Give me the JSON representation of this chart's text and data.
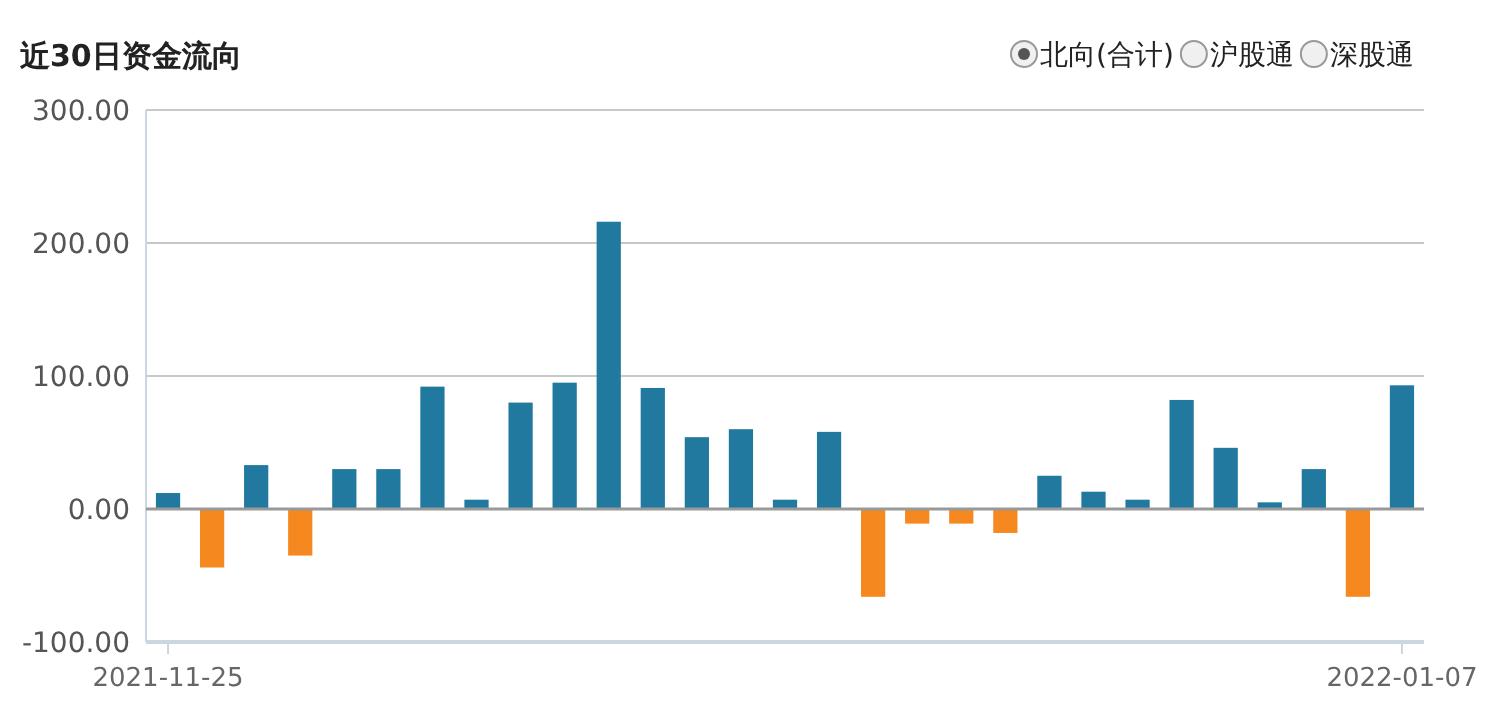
{
  "chart_data": {
    "type": "bar",
    "title": "近30日资金流向",
    "annotations": [
      "北向(合计)",
      "沪股通",
      "深股通"
    ],
    "categories": [
      "2021-11-25",
      null,
      null,
      null,
      null,
      null,
      null,
      null,
      null,
      null,
      null,
      null,
      null,
      null,
      null,
      null,
      null,
      null,
      null,
      null,
      null,
      null,
      null,
      null,
      null,
      null,
      null,
      null,
      "2022-01-07"
    ],
    "values": [
      12,
      -44,
      33,
      -35,
      30,
      30,
      92,
      7,
      80,
      95,
      216,
      91,
      54,
      60,
      7,
      58,
      -66,
      -11,
      -11,
      -18,
      25,
      13,
      7,
      82,
      46,
      5,
      30,
      -66,
      93
    ],
    "colors": [
      "#21799f",
      "#f5891f",
      "#21799f",
      "#f5891f",
      "#21799f",
      "#21799f",
      "#21799f",
      "#21799f",
      "#21799f",
      "#21799f",
      "#21799f",
      "#21799f",
      "#21799f",
      "#21799f",
      "#21799f",
      "#21799f",
      "#f5891f",
      "#f5891f",
      "#f5891f",
      "#f5891f",
      "#21799f",
      "#21799f",
      "#21799f",
      "#21799f",
      "#21799f",
      "#21799f",
      "#21799f",
      "#f5891f",
      "#21799f"
    ],
    "ylim": [
      -100,
      300
    ],
    "yticks": [
      {
        "value": -100,
        "label": "-100.00"
      },
      {
        "value": 0,
        "label": "0.00"
      },
      {
        "value": 100,
        "label": "100.00"
      },
      {
        "value": 200,
        "label": "200.00"
      },
      {
        "value": 300,
        "label": "300.00"
      }
    ],
    "grid": "y"
  }
}
